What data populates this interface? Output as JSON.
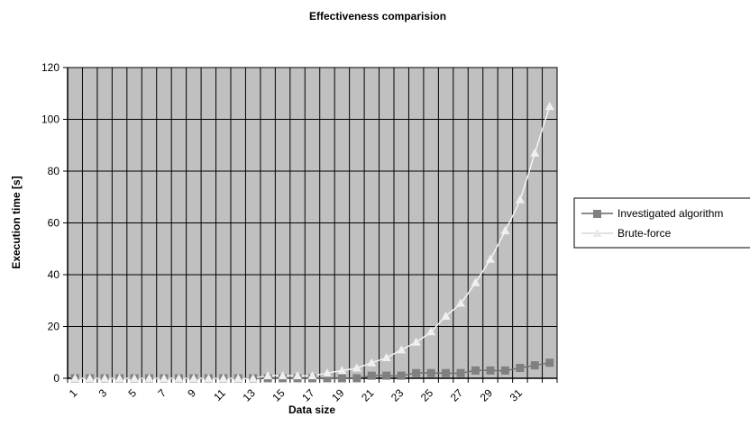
{
  "chart_data": {
    "type": "line",
    "title": "Effectiveness comparision",
    "xlabel": "Data size",
    "ylabel": "Execution time [s]",
    "ylim": [
      0,
      120
    ],
    "yticks": [
      0,
      20,
      40,
      60,
      80,
      100,
      120
    ],
    "x": [
      1,
      2,
      3,
      4,
      5,
      6,
      7,
      8,
      9,
      10,
      11,
      12,
      13,
      14,
      15,
      16,
      17,
      18,
      19,
      20,
      21,
      22,
      23,
      24,
      25,
      26,
      27,
      28,
      29,
      30,
      31,
      32,
      33
    ],
    "x_tick_labels": [
      "1",
      "3",
      "5",
      "7",
      "9",
      "11",
      "13",
      "15",
      "17",
      "19",
      "21",
      "23",
      "25",
      "27",
      "29",
      "31"
    ],
    "grid": {
      "vertical": true,
      "horizontal": true
    },
    "plot_background": "#c0c0c0",
    "legend_position": "right",
    "series": [
      {
        "name": "Investigated algorithm",
        "color": "#808080",
        "marker": "square",
        "values": [
          0,
          0,
          0,
          0,
          0,
          0,
          0,
          0,
          0,
          0,
          0,
          0,
          0,
          0,
          0,
          0,
          0,
          0,
          0,
          0,
          1,
          1,
          1,
          2,
          2,
          2,
          2,
          3,
          3,
          3,
          4,
          5,
          6
        ]
      },
      {
        "name": "Brute-force",
        "color": "#f0f0f0",
        "marker": "triangle",
        "values": [
          0,
          0,
          0,
          0,
          0,
          0,
          0,
          0,
          0,
          0,
          0,
          0,
          0,
          1,
          1,
          1,
          1,
          2,
          3,
          4,
          6,
          8,
          11,
          14,
          18,
          24,
          29,
          37,
          46,
          57,
          69,
          87,
          105
        ]
      }
    ]
  }
}
